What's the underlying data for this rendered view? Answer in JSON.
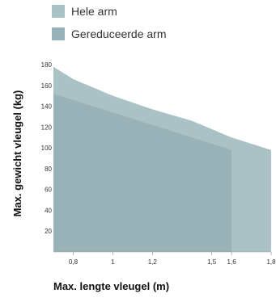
{
  "chart_data": {
    "type": "area",
    "xlabel": "Max. lengte vleugel (m)",
    "ylabel": "Max. gewicht vleugel (kg)",
    "xlim": [
      0.7,
      1.8
    ],
    "ylim": [
      0,
      180
    ],
    "x_ticks": [
      "0,8",
      "1",
      "1,2",
      "1,5",
      "1,6",
      "1,8"
    ],
    "y_ticks": [
      "20",
      "40",
      "60",
      "80",
      "100",
      "120",
      "140",
      "160",
      "180"
    ],
    "grid": false,
    "legend_position": "top-left",
    "series": [
      {
        "name": "Hele arm",
        "color": "#aac2c6",
        "points": [
          [
            0.7,
            178
          ],
          [
            0.8,
            166
          ],
          [
            1.0,
            150
          ],
          [
            1.2,
            137
          ],
          [
            1.4,
            126
          ],
          [
            1.6,
            110
          ],
          [
            1.8,
            98
          ]
        ]
      },
      {
        "name": "Gereduceerde arm",
        "color": "#98b2b7",
        "points": [
          [
            0.7,
            152
          ],
          [
            0.8,
            146
          ],
          [
            1.0,
            134
          ],
          [
            1.2,
            122
          ],
          [
            1.4,
            110
          ],
          [
            1.6,
            98
          ]
        ]
      }
    ]
  }
}
